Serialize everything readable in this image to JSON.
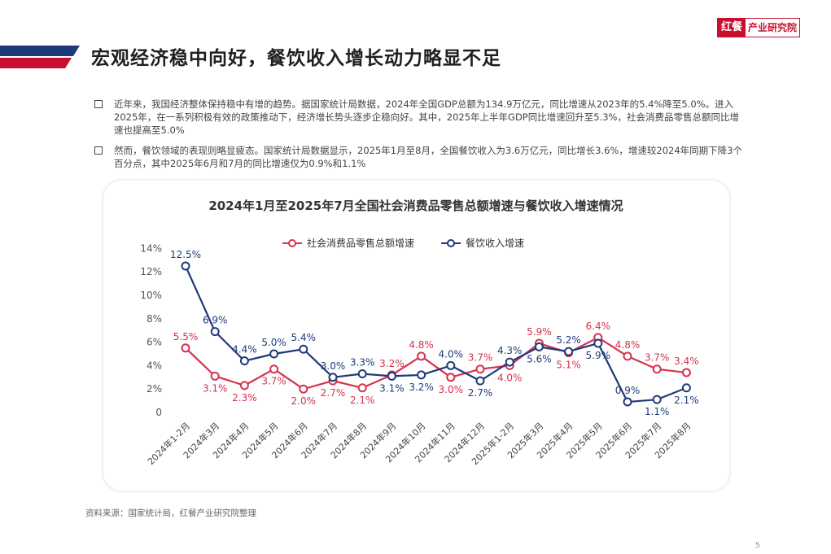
{
  "header": {
    "title": "宏观经济稳中向好，餐饮收入增长动力略显不足",
    "logo_mark": "红餐",
    "logo_text": "产业研究院"
  },
  "bullets": [
    "近年来，我国经济整体保持稳中有增的趋势。据国家统计局数据，2024年全国GDP总额为134.9万亿元，同比增速从2023年的5.4%降至5.0%。进入2025年，在一系列积极有效的政策推动下，经济增长势头逐步企稳向好。其中，2025年上半年GDP同比增速回升至5.3%，社会消费品零售总额同比增速也提高至5.0%",
    "然而，餐饮领域的表现则略显疲态。国家统计局数据显示，2025年1月至8月，全国餐饮收入为3.6万亿元，同比增长3.6%，增速较2024年同期下降3个百分点，其中2025年6月和7月的同比增速仅为0.9%和1.1%"
  ],
  "source": "资料来源：国家统计局，红餐产业研究院整理",
  "page_number": "5",
  "colors": {
    "retail": "#d6334d",
    "catering": "#1f3a7a",
    "brand": "#c8102e"
  },
  "chart_data": {
    "type": "line",
    "title": "2024年1月至2025年7月全国社会消费品零售总额增速与餐饮收入增速情况",
    "categories": [
      "2024年1-2月",
      "2024年3月",
      "2024年4月",
      "2024年5月",
      "2024年6月",
      "2024年7月",
      "2024年8月",
      "2024年9月",
      "2024年10月",
      "2024年11月",
      "2024年12月",
      "2025年1-2月",
      "2025年3月",
      "2025年4月",
      "2025年5月",
      "2025年6月",
      "2025年7月",
      "2025年8月"
    ],
    "y_ticks": [
      "0",
      "2%",
      "4%",
      "6%",
      "8%",
      "10%",
      "12%",
      "14%"
    ],
    "ylim": [
      0,
      14
    ],
    "legend_position": "top",
    "series": [
      {
        "name": "社会消费品零售总额增速",
        "values": [
          5.5,
          3.1,
          2.3,
          3.7,
          2.0,
          2.7,
          2.1,
          3.2,
          4.8,
          3.0,
          3.7,
          4.0,
          5.9,
          5.1,
          6.4,
          4.8,
          3.7,
          3.4
        ],
        "labels": [
          "5.5%",
          "3.1%",
          "2.3%",
          "3.7%",
          "2.0%",
          "2.7%",
          "2.1%",
          "3.2%",
          "4.8%",
          "3.0%",
          "3.7%",
          "4.0%",
          "5.9%",
          "5.1%",
          "6.4%",
          "4.8%",
          "3.7%",
          "3.4%"
        ]
      },
      {
        "name": "餐饮收入增速",
        "values": [
          12.5,
          6.9,
          4.4,
          5.0,
          5.4,
          3.0,
          3.3,
          3.1,
          3.2,
          4.0,
          2.7,
          4.3,
          5.6,
          5.2,
          5.9,
          0.9,
          1.1,
          2.1
        ],
        "labels": [
          "12.5%",
          "6.9%",
          "4.4%",
          "5.0%",
          "5.4%",
          "3.0%",
          "3.3%",
          "3.1%",
          "3.2%",
          "4.0%",
          "2.7%",
          "4.3%",
          "5.6%",
          "5.2%",
          "5.9%",
          "0.9%",
          "1.1%",
          "2.1%"
        ]
      }
    ]
  }
}
